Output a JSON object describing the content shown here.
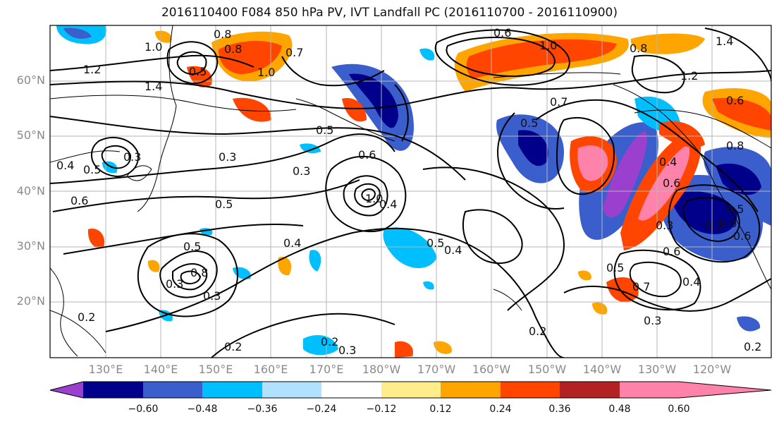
{
  "title": "2016110400 F084 850 hPa PV, IVT Landfall PC (2016110700 - 2016110900)",
  "latitude_labels": [
    "60°N",
    "50°N",
    "40°N",
    "30°N",
    "20°N"
  ],
  "longitude_labels": [
    "130°E",
    "140°E",
    "150°E",
    "160°E",
    "170°E",
    "180°W",
    "170°W",
    "160°W",
    "150°W",
    "140°W",
    "130°W",
    "120°W"
  ],
  "contour_labels": [
    "0.8",
    "0.8",
    "0.7",
    "1.0",
    "1.2",
    "1.0",
    "0.5",
    "1.4",
    "1.0",
    "0.6",
    "0.8",
    "1.4",
    "1.2",
    "0.6",
    "0.4",
    "0.5",
    "0.6",
    "0.3",
    "0.3",
    "0.5",
    "0.6",
    "0.7",
    "0.5",
    "0.8",
    "0.6",
    "0.4",
    "1.0",
    "0.4",
    "0.5",
    "0.3",
    "0.5",
    "0.3",
    "0.8",
    "0.3",
    "0.4",
    "0.5",
    "0.4",
    "0.6",
    "0.3",
    "0.5",
    "0.3",
    "0.6",
    "0.5",
    "0.2",
    "0.2",
    "0.3",
    "0.2",
    "0.2",
    "0.3",
    "0.7",
    "0.4",
    "0.6",
    "0.2"
  ],
  "colorbar": {
    "colors": [
      "#9b3fce",
      "#00008b",
      "#3a5fcd",
      "#00bfff",
      "#b0e2ff",
      "#ffffff",
      "#ffec8b",
      "#ffa500",
      "#ff4500",
      "#b22222",
      "#ff82ab"
    ],
    "tick_labels": [
      "−0.60",
      "−0.48",
      "−0.36",
      "−0.24",
      "−0.12",
      "0.12",
      "0.24",
      "0.36",
      "0.48",
      "0.60"
    ]
  }
}
